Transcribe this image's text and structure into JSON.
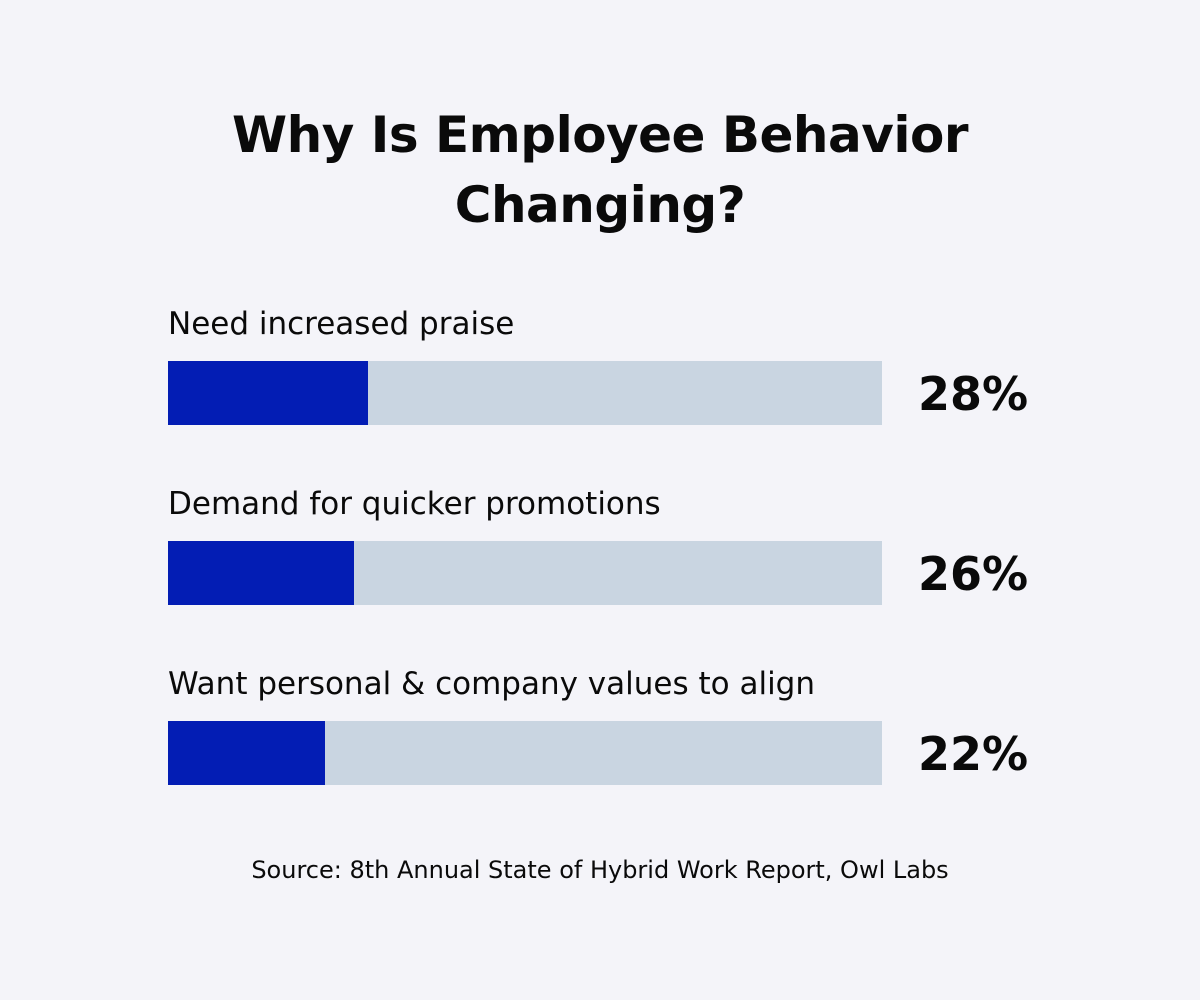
{
  "chart_data": {
    "type": "bar",
    "orientation": "horizontal",
    "title_line1": "Why Is Employee Behavior",
    "title_line2": "Changing?",
    "categories": [
      "Need increased praise",
      "Demand for quicker promotions",
      "Want personal & company values to align"
    ],
    "values": [
      28,
      26,
      22
    ],
    "value_labels": [
      "28%",
      "26%",
      "22%"
    ],
    "xlim": [
      0,
      100
    ],
    "grid": false,
    "legend": "none",
    "source": "Source: 8th Annual State of Hybrid Work Report, Owl Labs"
  },
  "colors": {
    "background": "#f4f4f9",
    "bar_fill": "#031db4",
    "bar_track": "#c9d5e1",
    "text": "#0a0a0a"
  }
}
